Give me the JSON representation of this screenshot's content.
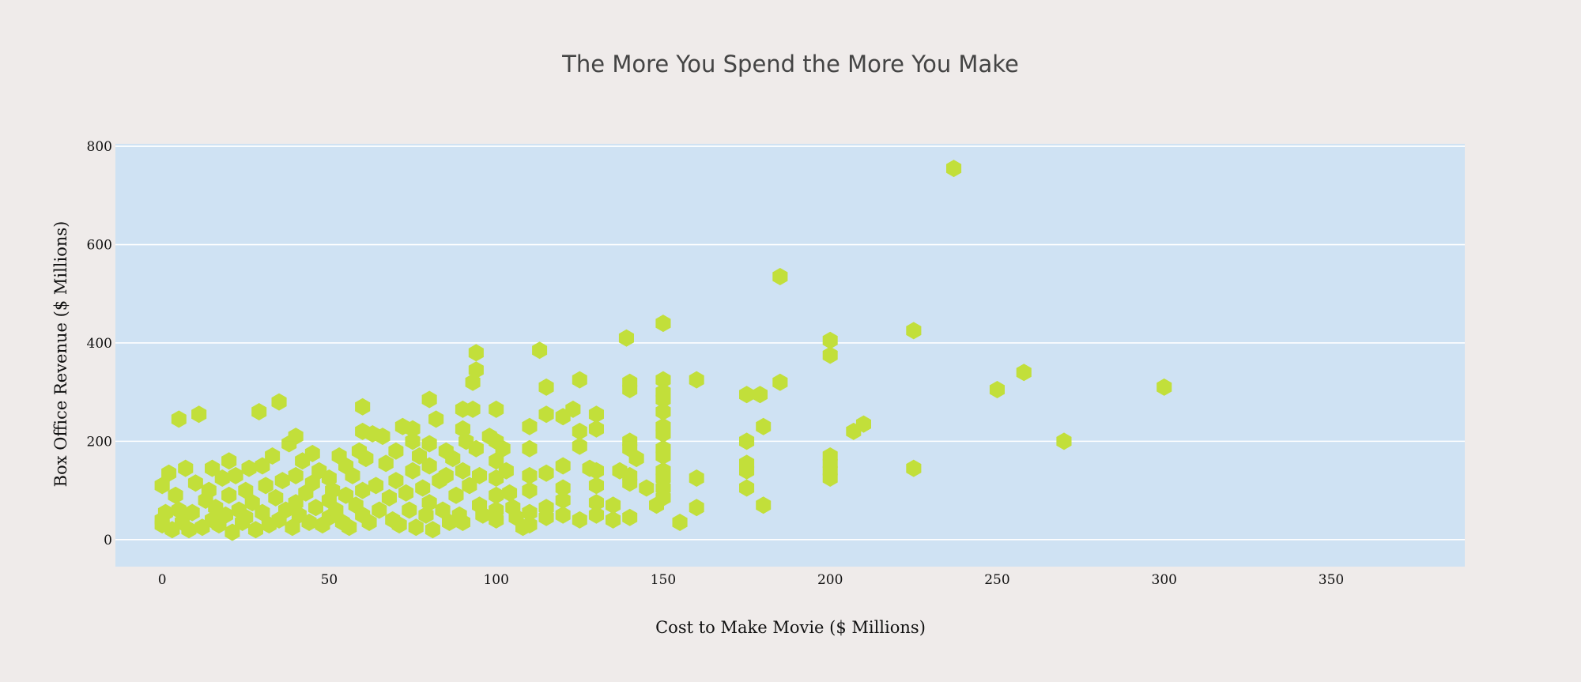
{
  "chart_data": {
    "type": "scatter",
    "title": "The More You Spend the More You Make",
    "xlabel": "Cost to Make Movie ($ Millions)",
    "ylabel": "Box Office Revenue ($ Millions)",
    "xlim": [
      -14,
      390
    ],
    "ylim": [
      -55,
      805
    ],
    "xticks": [
      0,
      50,
      100,
      150,
      200,
      250,
      300,
      350
    ],
    "yticks": [
      0,
      200,
      400,
      600,
      800
    ],
    "grid": "horizontal",
    "marker": "hexagon",
    "colors": {
      "marker": "#c2df3a",
      "plot_background": "#cfe2f3",
      "page_background": "#efebea",
      "grid": "#ffffff"
    },
    "points": [
      [
        0,
        110
      ],
      [
        0,
        40
      ],
      [
        0,
        30
      ],
      [
        1,
        55
      ],
      [
        2,
        135
      ],
      [
        3,
        20
      ],
      [
        4,
        90
      ],
      [
        5,
        245
      ],
      [
        5,
        60
      ],
      [
        6,
        35
      ],
      [
        7,
        145
      ],
      [
        8,
        20
      ],
      [
        9,
        55
      ],
      [
        10,
        115
      ],
      [
        11,
        255
      ],
      [
        12,
        25
      ],
      [
        13,
        80
      ],
      [
        14,
        100
      ],
      [
        15,
        145
      ],
      [
        15,
        40
      ],
      [
        16,
        65
      ],
      [
        17,
        30
      ],
      [
        18,
        125
      ],
      [
        19,
        50
      ],
      [
        20,
        160
      ],
      [
        20,
        90
      ],
      [
        21,
        15
      ],
      [
        22,
        130
      ],
      [
        23,
        60
      ],
      [
        24,
        35
      ],
      [
        25,
        100
      ],
      [
        25,
        45
      ],
      [
        26,
        145
      ],
      [
        27,
        75
      ],
      [
        28,
        20
      ],
      [
        29,
        260
      ],
      [
        30,
        150
      ],
      [
        30,
        55
      ],
      [
        31,
        110
      ],
      [
        32,
        30
      ],
      [
        33,
        170
      ],
      [
        34,
        85
      ],
      [
        35,
        280
      ],
      [
        35,
        40
      ],
      [
        36,
        120
      ],
      [
        37,
        60
      ],
      [
        38,
        195
      ],
      [
        39,
        25
      ],
      [
        40,
        210
      ],
      [
        40,
        130
      ],
      [
        40,
        75
      ],
      [
        41,
        50
      ],
      [
        42,
        160
      ],
      [
        43,
        95
      ],
      [
        44,
        35
      ],
      [
        45,
        175
      ],
      [
        45,
        115
      ],
      [
        46,
        65
      ],
      [
        47,
        140
      ],
      [
        48,
        30
      ],
      [
        50,
        125
      ],
      [
        50,
        80
      ],
      [
        50,
        45
      ],
      [
        51,
        100
      ],
      [
        52,
        60
      ],
      [
        53,
        170
      ],
      [
        54,
        35
      ],
      [
        55,
        150
      ],
      [
        55,
        90
      ],
      [
        56,
        25
      ],
      [
        57,
        130
      ],
      [
        58,
        70
      ],
      [
        59,
        180
      ],
      [
        60,
        270
      ],
      [
        60,
        220
      ],
      [
        60,
        100
      ],
      [
        60,
        50
      ],
      [
        61,
        165
      ],
      [
        62,
        35
      ],
      [
        63,
        215
      ],
      [
        64,
        110
      ],
      [
        65,
        60
      ],
      [
        66,
        210
      ],
      [
        67,
        155
      ],
      [
        68,
        85
      ],
      [
        69,
        40
      ],
      [
        70,
        180
      ],
      [
        70,
        120
      ],
      [
        71,
        30
      ],
      [
        72,
        230
      ],
      [
        73,
        95
      ],
      [
        74,
        60
      ],
      [
        75,
        225
      ],
      [
        75,
        200
      ],
      [
        75,
        140
      ],
      [
        76,
        25
      ],
      [
        77,
        170
      ],
      [
        78,
        105
      ],
      [
        79,
        50
      ],
      [
        80,
        285
      ],
      [
        80,
        195
      ],
      [
        80,
        150
      ],
      [
        80,
        75
      ],
      [
        81,
        20
      ],
      [
        82,
        245
      ],
      [
        83,
        120
      ],
      [
        84,
        60
      ],
      [
        85,
        180
      ],
      [
        85,
        130
      ],
      [
        86,
        35
      ],
      [
        87,
        165
      ],
      [
        88,
        90
      ],
      [
        89,
        50
      ],
      [
        90,
        265
      ],
      [
        90,
        225
      ],
      [
        90,
        140
      ],
      [
        90,
        35
      ],
      [
        91,
        200
      ],
      [
        92,
        110
      ],
      [
        93,
        320
      ],
      [
        93,
        265
      ],
      [
        94,
        380
      ],
      [
        94,
        345
      ],
      [
        94,
        185
      ],
      [
        95,
        130
      ],
      [
        95,
        70
      ],
      [
        96,
        50
      ],
      [
        98,
        210
      ],
      [
        100,
        265
      ],
      [
        100,
        200
      ],
      [
        100,
        160
      ],
      [
        100,
        125
      ],
      [
        100,
        90
      ],
      [
        100,
        60
      ],
      [
        100,
        40
      ],
      [
        102,
        185
      ],
      [
        103,
        140
      ],
      [
        104,
        95
      ],
      [
        105,
        65
      ],
      [
        106,
        45
      ],
      [
        108,
        25
      ],
      [
        110,
        230
      ],
      [
        110,
        185
      ],
      [
        110,
        130
      ],
      [
        110,
        100
      ],
      [
        110,
        55
      ],
      [
        110,
        30
      ],
      [
        113,
        385
      ],
      [
        115,
        310
      ],
      [
        115,
        255
      ],
      [
        115,
        135
      ],
      [
        115,
        65
      ],
      [
        115,
        45
      ],
      [
        120,
        250
      ],
      [
        120,
        150
      ],
      [
        120,
        105
      ],
      [
        120,
        80
      ],
      [
        120,
        50
      ],
      [
        123,
        265
      ],
      [
        125,
        325
      ],
      [
        125,
        220
      ],
      [
        125,
        190
      ],
      [
        125,
        40
      ],
      [
        128,
        145
      ],
      [
        130,
        255
      ],
      [
        130,
        225
      ],
      [
        130,
        140
      ],
      [
        130,
        110
      ],
      [
        130,
        75
      ],
      [
        130,
        50
      ],
      [
        135,
        70
      ],
      [
        135,
        40
      ],
      [
        137,
        140
      ],
      [
        139,
        410
      ],
      [
        140,
        320
      ],
      [
        140,
        305
      ],
      [
        140,
        200
      ],
      [
        140,
        185
      ],
      [
        140,
        130
      ],
      [
        140,
        115
      ],
      [
        140,
        45
      ],
      [
        142,
        165
      ],
      [
        145,
        105
      ],
      [
        148,
        70
      ],
      [
        150,
        440
      ],
      [
        150,
        325
      ],
      [
        150,
        300
      ],
      [
        150,
        285
      ],
      [
        150,
        260
      ],
      [
        150,
        230
      ],
      [
        150,
        215
      ],
      [
        150,
        185
      ],
      [
        150,
        170
      ],
      [
        150,
        140
      ],
      [
        150,
        125
      ],
      [
        150,
        105
      ],
      [
        150,
        85
      ],
      [
        155,
        35
      ],
      [
        160,
        325
      ],
      [
        160,
        125
      ],
      [
        160,
        65
      ],
      [
        175,
        295
      ],
      [
        175,
        200
      ],
      [
        175,
        155
      ],
      [
        175,
        140
      ],
      [
        175,
        105
      ],
      [
        179,
        295
      ],
      [
        180,
        230
      ],
      [
        180,
        70
      ],
      [
        185,
        535
      ],
      [
        185,
        320
      ],
      [
        200,
        405
      ],
      [
        200,
        375
      ],
      [
        200,
        170
      ],
      [
        200,
        155
      ],
      [
        200,
        140
      ],
      [
        200,
        125
      ],
      [
        207,
        220
      ],
      [
        210,
        235
      ],
      [
        225,
        425
      ],
      [
        225,
        145
      ],
      [
        237,
        755
      ],
      [
        250,
        305
      ],
      [
        258,
        340
      ],
      [
        270,
        200
      ],
      [
        300,
        310
      ]
    ]
  }
}
